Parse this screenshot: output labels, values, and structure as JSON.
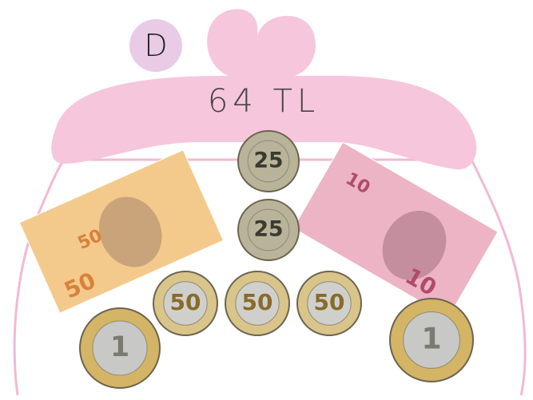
{
  "label": "D",
  "amount": "64 TL",
  "banknotes": [
    {
      "label": "50"
    },
    {
      "label": "10"
    }
  ],
  "coins": [
    {
      "label": "25"
    },
    {
      "label": "25"
    },
    {
      "label": "50"
    },
    {
      "label": "50"
    },
    {
      "label": "50"
    },
    {
      "label": "1"
    },
    {
      "label": "1"
    }
  ]
}
